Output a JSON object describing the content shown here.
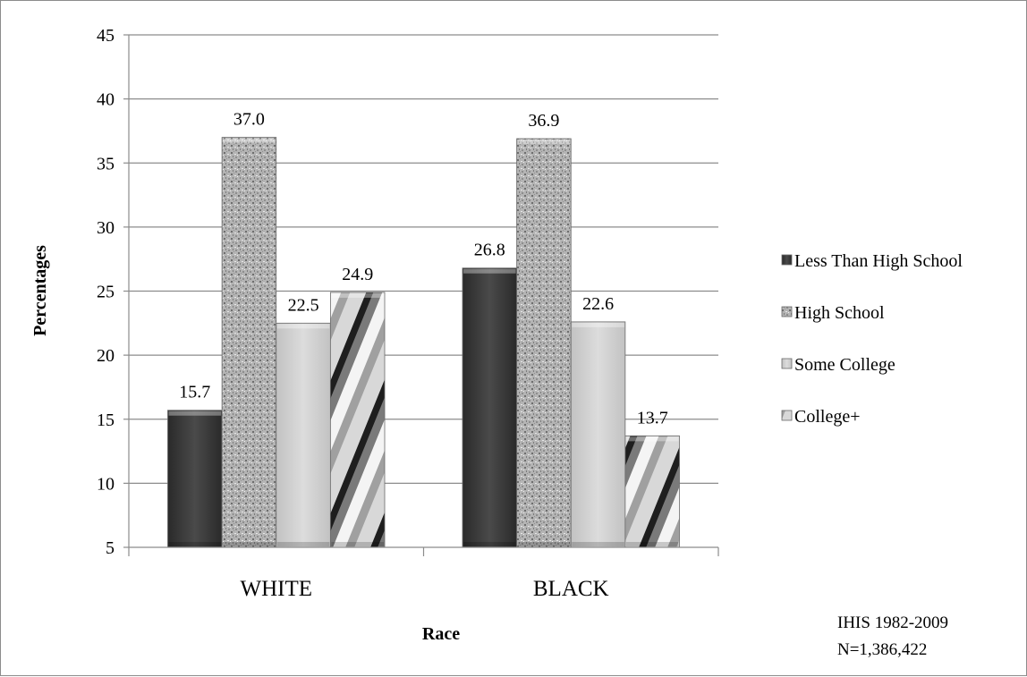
{
  "chart_data": {
    "type": "bar",
    "categories": [
      "WHITE",
      "BLACK"
    ],
    "series": [
      {
        "name": "Less Than High School",
        "values": [
          15.7,
          26.8
        ],
        "labels": [
          "15.7",
          "26.8"
        ],
        "color": "#3c3c3c"
      },
      {
        "name": "High School",
        "values": [
          37.0,
          36.9
        ],
        "labels": [
          "37.0",
          "36.9"
        ],
        "color": "#a8a8a8"
      },
      {
        "name": "Some College",
        "values": [
          22.5,
          22.6
        ],
        "labels": [
          "22.5",
          "22.6"
        ],
        "color": "#cfcfcf"
      },
      {
        "name": "College+",
        "values": [
          24.9,
          13.7
        ],
        "labels": [
          "24.9",
          "13.7"
        ],
        "color": "#b8b8b8"
      }
    ],
    "xlabel": "Race",
    "ylabel": "Percentages",
    "ylim": [
      5,
      45
    ],
    "yticks": [
      5,
      10,
      15,
      20,
      25,
      30,
      35,
      40,
      45
    ],
    "grid": true,
    "legend_position": "right",
    "annotations": [
      "IHIS 1982-2009",
      "N=1,386,422"
    ]
  }
}
